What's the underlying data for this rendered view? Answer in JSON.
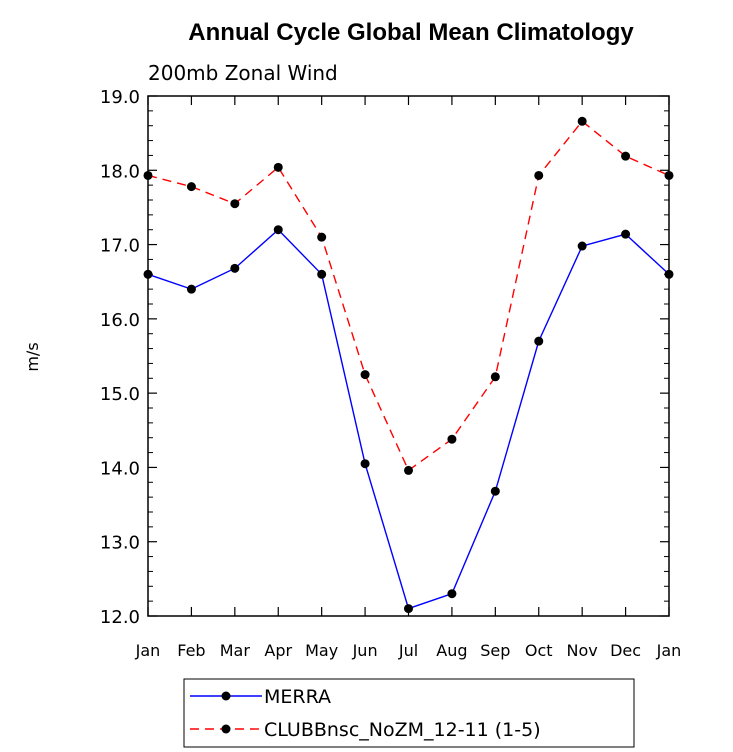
{
  "chart_data": {
    "type": "line",
    "title": "Annual Cycle Global Mean Climatology",
    "subtitle": "200mb Zonal Wind",
    "ylabel": "m/s",
    "xlabel": "",
    "ylim": [
      12.0,
      19.0
    ],
    "yticks": [
      "12.0",
      "13.0",
      "14.0",
      "15.0",
      "16.0",
      "17.0",
      "18.0",
      "19.0"
    ],
    "categories": [
      "Jan",
      "Feb",
      "Mar",
      "Apr",
      "May",
      "Jun",
      "Jul",
      "Aug",
      "Sep",
      "Oct",
      "Nov",
      "Dec",
      "Jan"
    ],
    "series": [
      {
        "name": "MERRA",
        "color": "#0000ff",
        "line_style": "solid",
        "marker": "filled-circle",
        "values": [
          16.6,
          16.4,
          16.68,
          17.2,
          16.6,
          14.05,
          12.1,
          12.3,
          13.68,
          15.7,
          16.98,
          17.14,
          16.6
        ]
      },
      {
        "name": "CLUBBnsc_NoZM_12-11 (1-5)",
        "color": "#ff0000",
        "line_style": "dashed",
        "marker": "filled-circle",
        "values": [
          17.93,
          17.78,
          17.55,
          18.04,
          17.1,
          15.25,
          13.96,
          14.38,
          15.22,
          17.93,
          18.66,
          18.19,
          17.93
        ]
      }
    ],
    "grid": false,
    "legend_position": "bottom"
  }
}
